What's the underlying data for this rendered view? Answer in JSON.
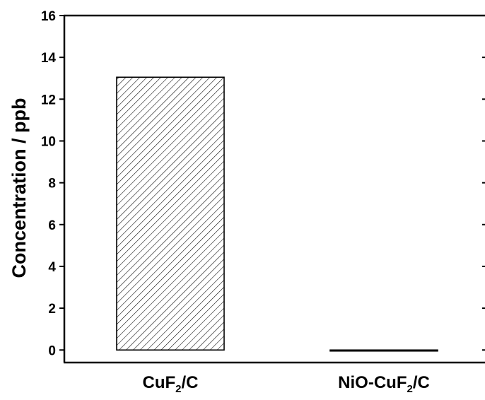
{
  "chart_data": {
    "type": "bar",
    "categories": [
      {
        "main": "CuF",
        "sub": "2",
        "tail": "/C"
      },
      {
        "main": "NiO-CuF",
        "sub": "2",
        "tail": "/C"
      }
    ],
    "values": [
      13.05,
      -0.05
    ],
    "patterns": [
      "diagonal-hatch",
      "cross-hatch"
    ],
    "ylabel": "Concentration / ppb",
    "ylim": [
      -0.6,
      16
    ],
    "yticks": [
      0,
      2,
      4,
      6,
      8,
      10,
      12,
      14,
      16
    ],
    "grid": false,
    "colors": {
      "axis": "#000000",
      "bar_fill": "#ffffff",
      "hatch": "#000000"
    }
  }
}
